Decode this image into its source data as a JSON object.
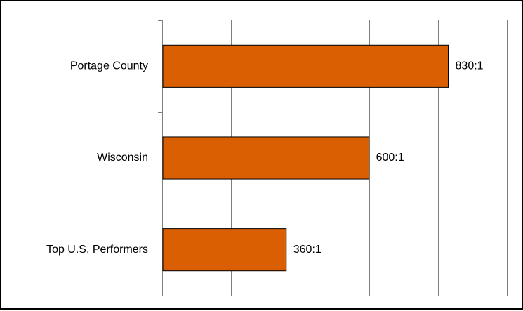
{
  "chart_data": {
    "type": "bar",
    "orientation": "horizontal",
    "categories": [
      "Portage County",
      "Wisconsin",
      "Top U.S. Performers"
    ],
    "values": [
      830,
      600,
      360
    ],
    "value_labels": [
      "830:1",
      "600:1",
      "360:1"
    ],
    "title": "",
    "xlabel": "",
    "ylabel": "",
    "xlim": [
      0,
      1000
    ],
    "grid": true,
    "legend": "none",
    "bar_color": "#D95F02",
    "bar_border_color": "#000000",
    "gridline_color": "#7F7F7F"
  }
}
